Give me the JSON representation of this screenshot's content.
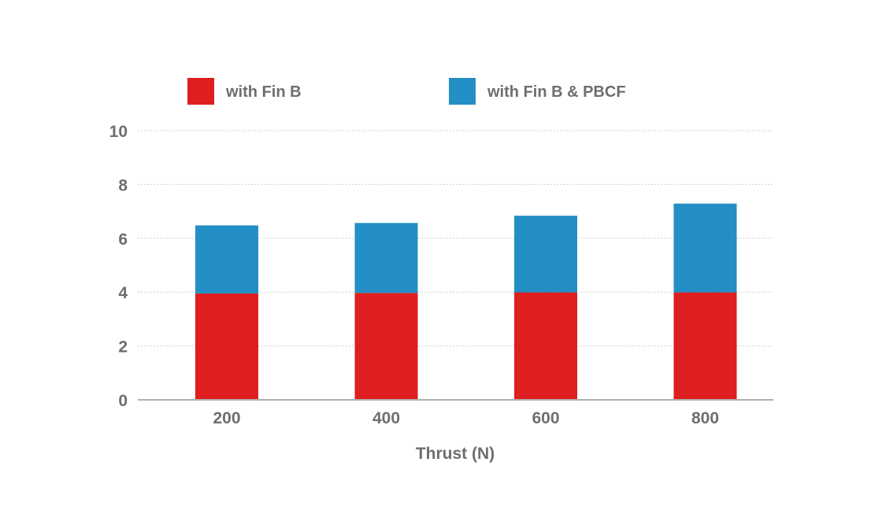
{
  "chart_data": {
    "type": "bar",
    "stacked": true,
    "categories": [
      "200",
      "400",
      "600",
      "800"
    ],
    "series": [
      {
        "name": "with Fin B",
        "color": "#de1e1f",
        "values": [
          3.95,
          3.97,
          3.99,
          3.99
        ]
      },
      {
        "name": "with Fin B & PBCF",
        "color": "#238fc5",
        "values": [
          2.53,
          2.6,
          2.85,
          3.3
        ]
      }
    ],
    "title": "",
    "xlabel": "Thrust (N)",
    "ylabel": "",
    "ylim": [
      0,
      10
    ],
    "yticks": [
      0,
      2,
      4,
      6,
      8,
      10
    ],
    "grid": true,
    "legend_position": "top"
  }
}
